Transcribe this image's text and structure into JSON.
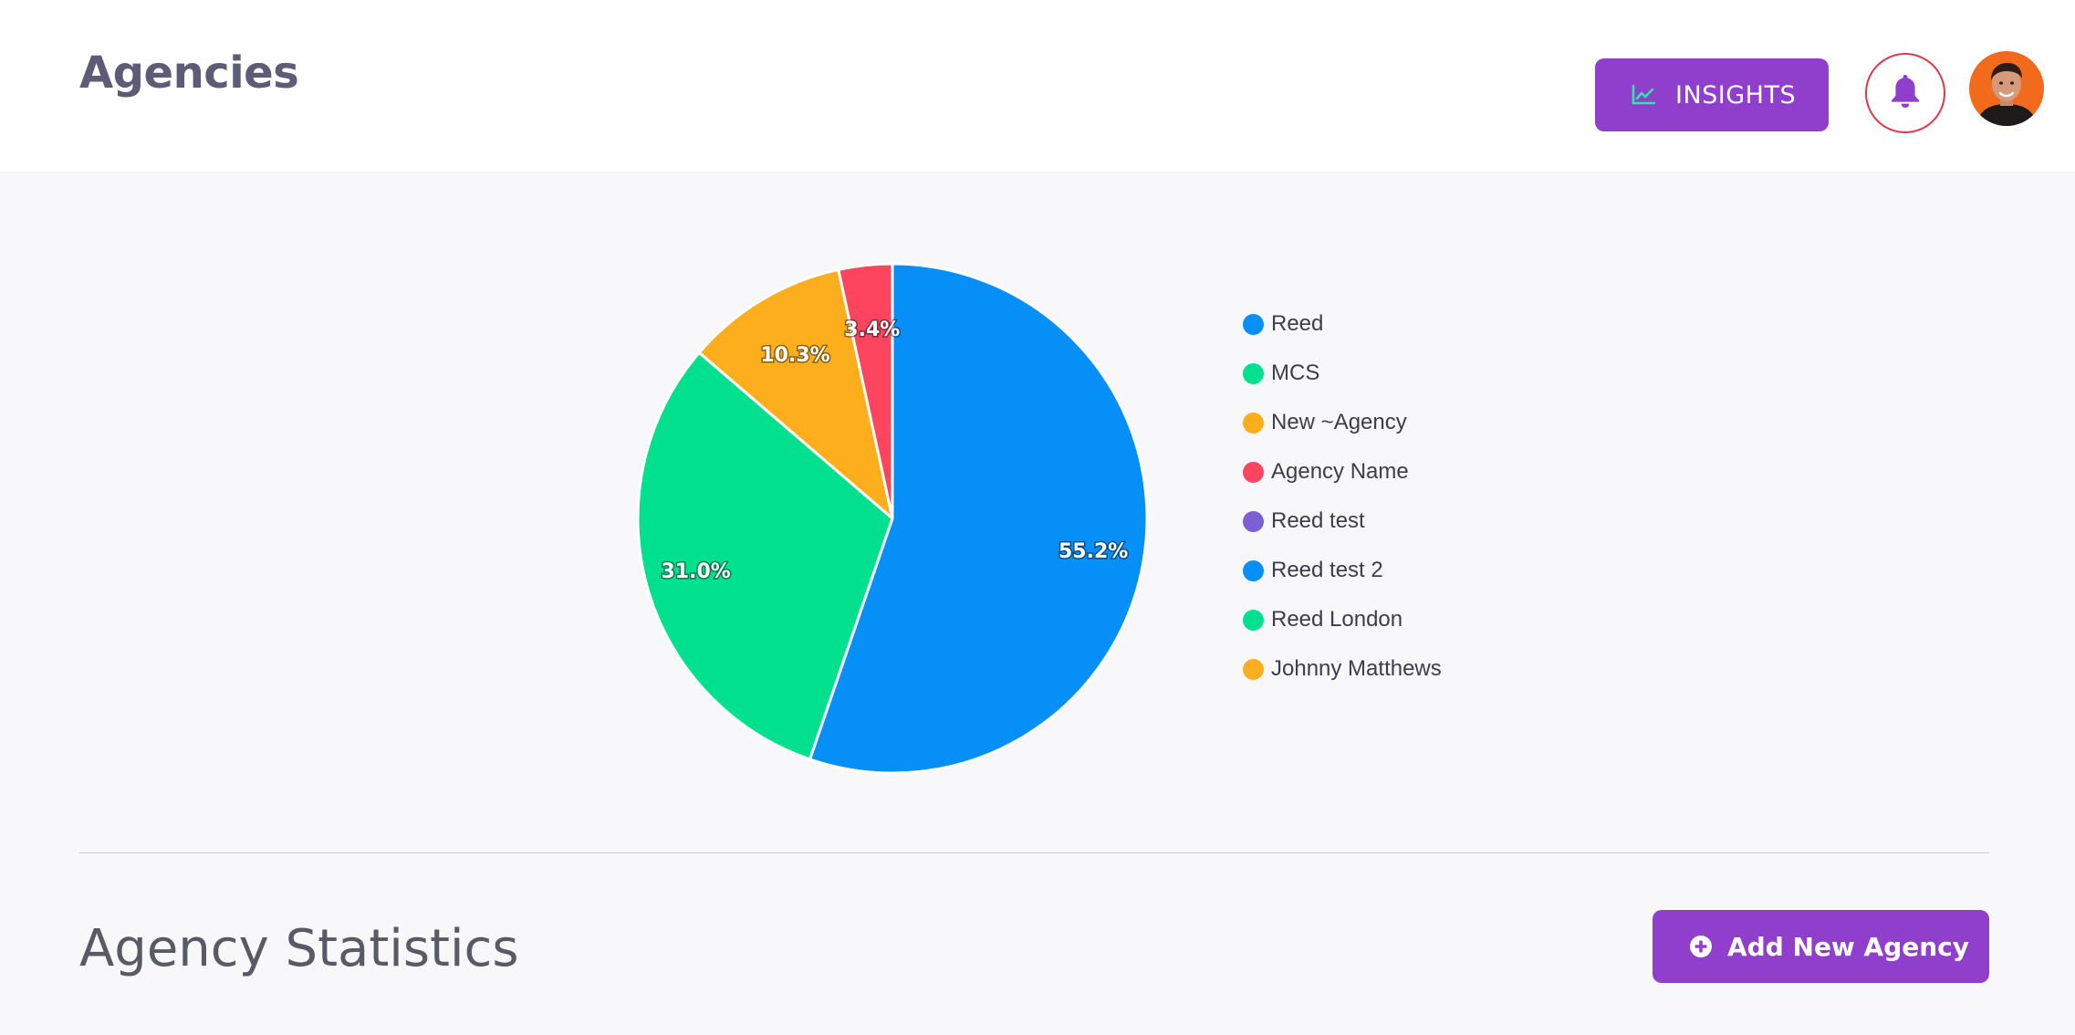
{
  "header": {
    "title": "Agencies",
    "insights_label": "INSIGHTS",
    "insights_icon": "trend-chart-icon",
    "notifications_icon": "bell-icon",
    "avatar_icon": "user-avatar"
  },
  "colors": {
    "accent": "#8f3fcb",
    "bell_border": "#e0354b",
    "insights_icon": "#2ee6a6",
    "page_bg": "#f8f8fa"
  },
  "chart_data": {
    "type": "pie",
    "series": [
      {
        "label": "Reed",
        "value": 55.2,
        "color": "#068ff7"
      },
      {
        "label": "MCS",
        "value": 31.0,
        "color": "#00e08f"
      },
      {
        "label": "New ~Agency",
        "value": 10.3,
        "color": "#fcae1c"
      },
      {
        "label": "Agency Name",
        "value": 3.4,
        "color": "#fd4560"
      },
      {
        "label": "Reed test",
        "value": 0,
        "color": "#7b5fd3"
      },
      {
        "label": "Reed test 2",
        "value": 0,
        "color": "#068ff7"
      },
      {
        "label": "Reed London",
        "value": 0,
        "color": "#00e08f"
      },
      {
        "label": "Johnny Matthews",
        "value": 0,
        "color": "#fcae1c"
      }
    ],
    "data_labels": [
      "55.2%",
      "31.0%",
      "10.3%",
      "3.4%"
    ],
    "legend_position": "right"
  },
  "legend": {
    "items": [
      {
        "label": "Reed"
      },
      {
        "label": "MCS"
      },
      {
        "label": "New ~Agency"
      },
      {
        "label": "Agency Name"
      },
      {
        "label": "Reed test"
      },
      {
        "label": "Reed test 2"
      },
      {
        "label": "Reed London"
      },
      {
        "label": "Johnny Matthews"
      }
    ]
  },
  "section": {
    "title": "Agency Statistics",
    "add_button_label": "Add New Agency",
    "add_button_icon": "plus-circle-icon"
  }
}
